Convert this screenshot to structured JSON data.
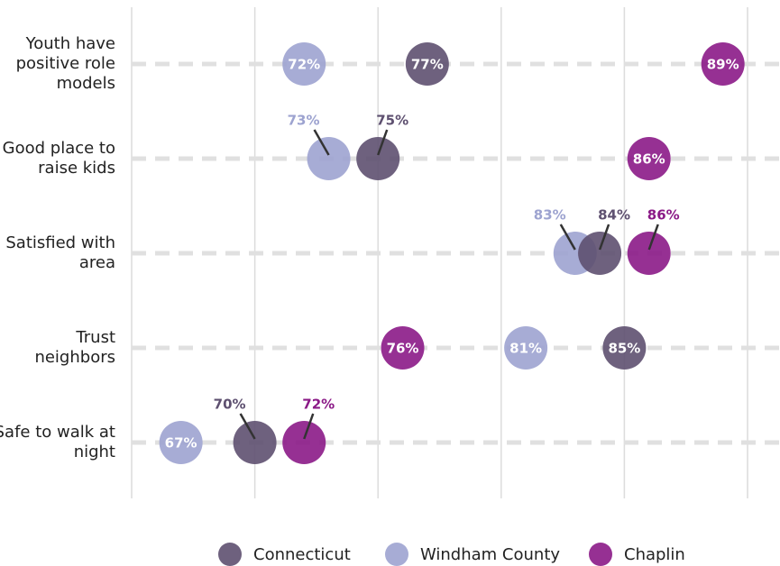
{
  "chart_data": {
    "type": "dot",
    "categories": [
      "Youth have positive role models",
      "Good place to raise kids",
      "Satisfied with area",
      "Trust neighbors",
      "Safe to walk at night"
    ],
    "xlim": [
      65,
      90
    ],
    "xticks": [
      65,
      70,
      75,
      80,
      85,
      90
    ],
    "grid": true,
    "series": [
      {
        "name": "Connecticut",
        "color": "#5e5070",
        "values": [
          77,
          75,
          84,
          85,
          70
        ],
        "value_labels": [
          "77%",
          "75%",
          "84%",
          "85%",
          "70%"
        ]
      },
      {
        "name": "Windham County",
        "color": "#9da3d0",
        "values": [
          72,
          73,
          83,
          81,
          67
        ],
        "value_labels": [
          "72%",
          "73%",
          "83%",
          "81%",
          "67%"
        ]
      },
      {
        "name": "Chaplin",
        "color": "#8b1a87",
        "values": [
          89,
          86,
          86,
          76,
          72
        ],
        "value_labels": [
          "89%",
          "86%",
          "86%",
          "76%",
          "72%"
        ]
      }
    ]
  }
}
